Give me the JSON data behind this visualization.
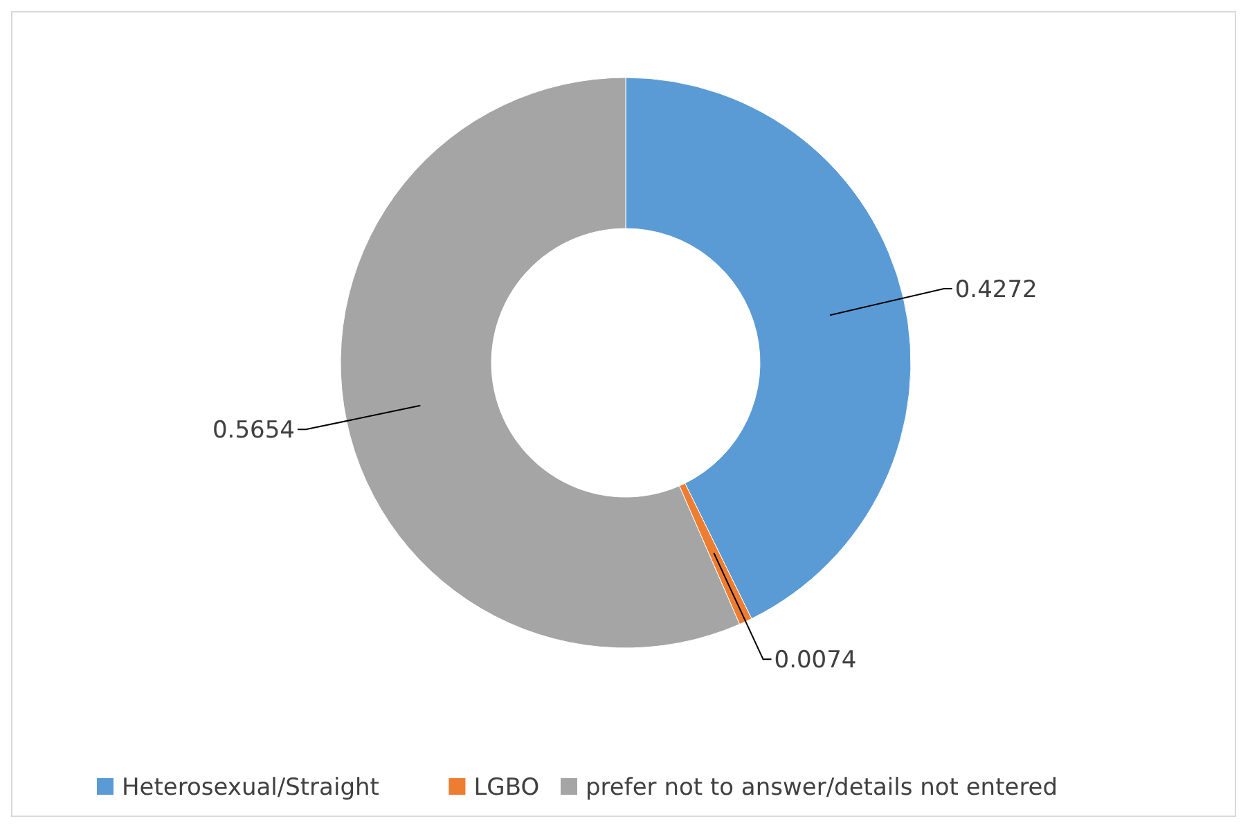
{
  "chart_data": {
    "type": "donut",
    "categories": [
      "Heterosexual/Straight",
      "LGBO",
      "prefer not to answer/details not entered"
    ],
    "values": [
      0.4272,
      0.0074,
      0.5654
    ],
    "colors": [
      "#5b9bd5",
      "#ed7d31",
      "#a5a5a5"
    ],
    "data_labels": true,
    "legend": "bottom"
  }
}
